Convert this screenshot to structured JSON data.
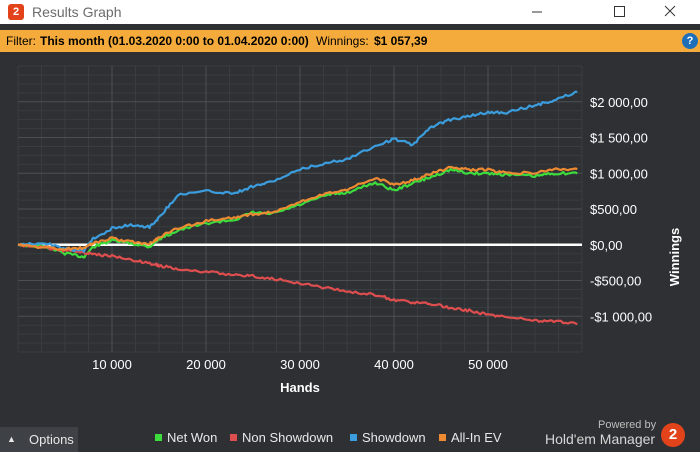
{
  "window": {
    "logo_text": "2",
    "title": "Results Graph",
    "controls": [
      "minimize-icon",
      "maximize-icon",
      "close-icon"
    ]
  },
  "filter": {
    "label": "Filter:",
    "value": "This month (01.03.2020 0:00 to 01.04.2020 0:00)",
    "winnings_label": "Winnings:",
    "winnings_value": "$1 057,39",
    "help_text": "?",
    "bar_color": "#f4ab3c"
  },
  "chart_data": {
    "type": "line",
    "xlabel": "Hands",
    "ylabel": "Winnings",
    "xlim": [
      0,
      60000
    ],
    "ylim": [
      -1500,
      2500
    ],
    "x_ticks": [
      10000,
      20000,
      30000,
      40000,
      50000
    ],
    "x_tick_labels": [
      "10 000",
      "20 000",
      "30 000",
      "40 000",
      "50 000"
    ],
    "y_ticks": [
      2000,
      1500,
      1000,
      500,
      0,
      -500,
      -1000
    ],
    "y_tick_labels": [
      "$2 000,00",
      "$1 500,00",
      "$1 000,00",
      "$500,00",
      "$0,00",
      "-$500,00",
      "-$1 000,00"
    ],
    "grid": true,
    "zero_line": true,
    "legend_position": "bottom",
    "x": [
      0,
      3000,
      5000,
      7000,
      8000,
      10000,
      12000,
      14000,
      15000,
      17000,
      20000,
      23000,
      25000,
      27000,
      30000,
      33000,
      35000,
      38000,
      40000,
      42000,
      44000,
      46000,
      48000,
      50000,
      52000,
      55000,
      57000,
      59500
    ],
    "series": [
      {
        "name": "Net Won",
        "color": "#3ddc3d",
        "values": [
          0,
          -30,
          -120,
          -170,
          -30,
          60,
          20,
          -30,
          80,
          200,
          300,
          350,
          450,
          430,
          560,
          700,
          730,
          870,
          760,
          860,
          950,
          1050,
          1000,
          1000,
          980,
          960,
          1000,
          1000
        ]
      },
      {
        "name": "Non Showdown",
        "color": "#de4e4e",
        "values": [
          0,
          -40,
          -80,
          -110,
          -130,
          -160,
          -210,
          -260,
          -290,
          -340,
          -380,
          -420,
          -440,
          -470,
          -540,
          -610,
          -650,
          -700,
          -770,
          -810,
          -830,
          -880,
          -920,
          -980,
          -1010,
          -1060,
          -1070,
          -1110
        ]
      },
      {
        "name": "Showdown",
        "color": "#3b9ddd",
        "values": [
          0,
          20,
          -60,
          -80,
          80,
          230,
          280,
          250,
          380,
          700,
          750,
          720,
          820,
          880,
          1050,
          1150,
          1200,
          1380,
          1480,
          1400,
          1650,
          1750,
          1800,
          1850,
          1850,
          1950,
          2020,
          2140
        ]
      },
      {
        "name": "All-In EV",
        "color": "#ee8a32",
        "values": [
          0,
          -40,
          -60,
          -40,
          20,
          90,
          40,
          10,
          100,
          230,
          330,
          380,
          430,
          450,
          600,
          720,
          770,
          940,
          840,
          900,
          1000,
          1080,
          1050,
          1050,
          1000,
          1010,
          1050,
          1060
        ]
      }
    ]
  },
  "bottom": {
    "options_label": "Options",
    "powered_by": "Powered by",
    "brand": "Hold'em Manager",
    "brand_logo_text": "2"
  }
}
